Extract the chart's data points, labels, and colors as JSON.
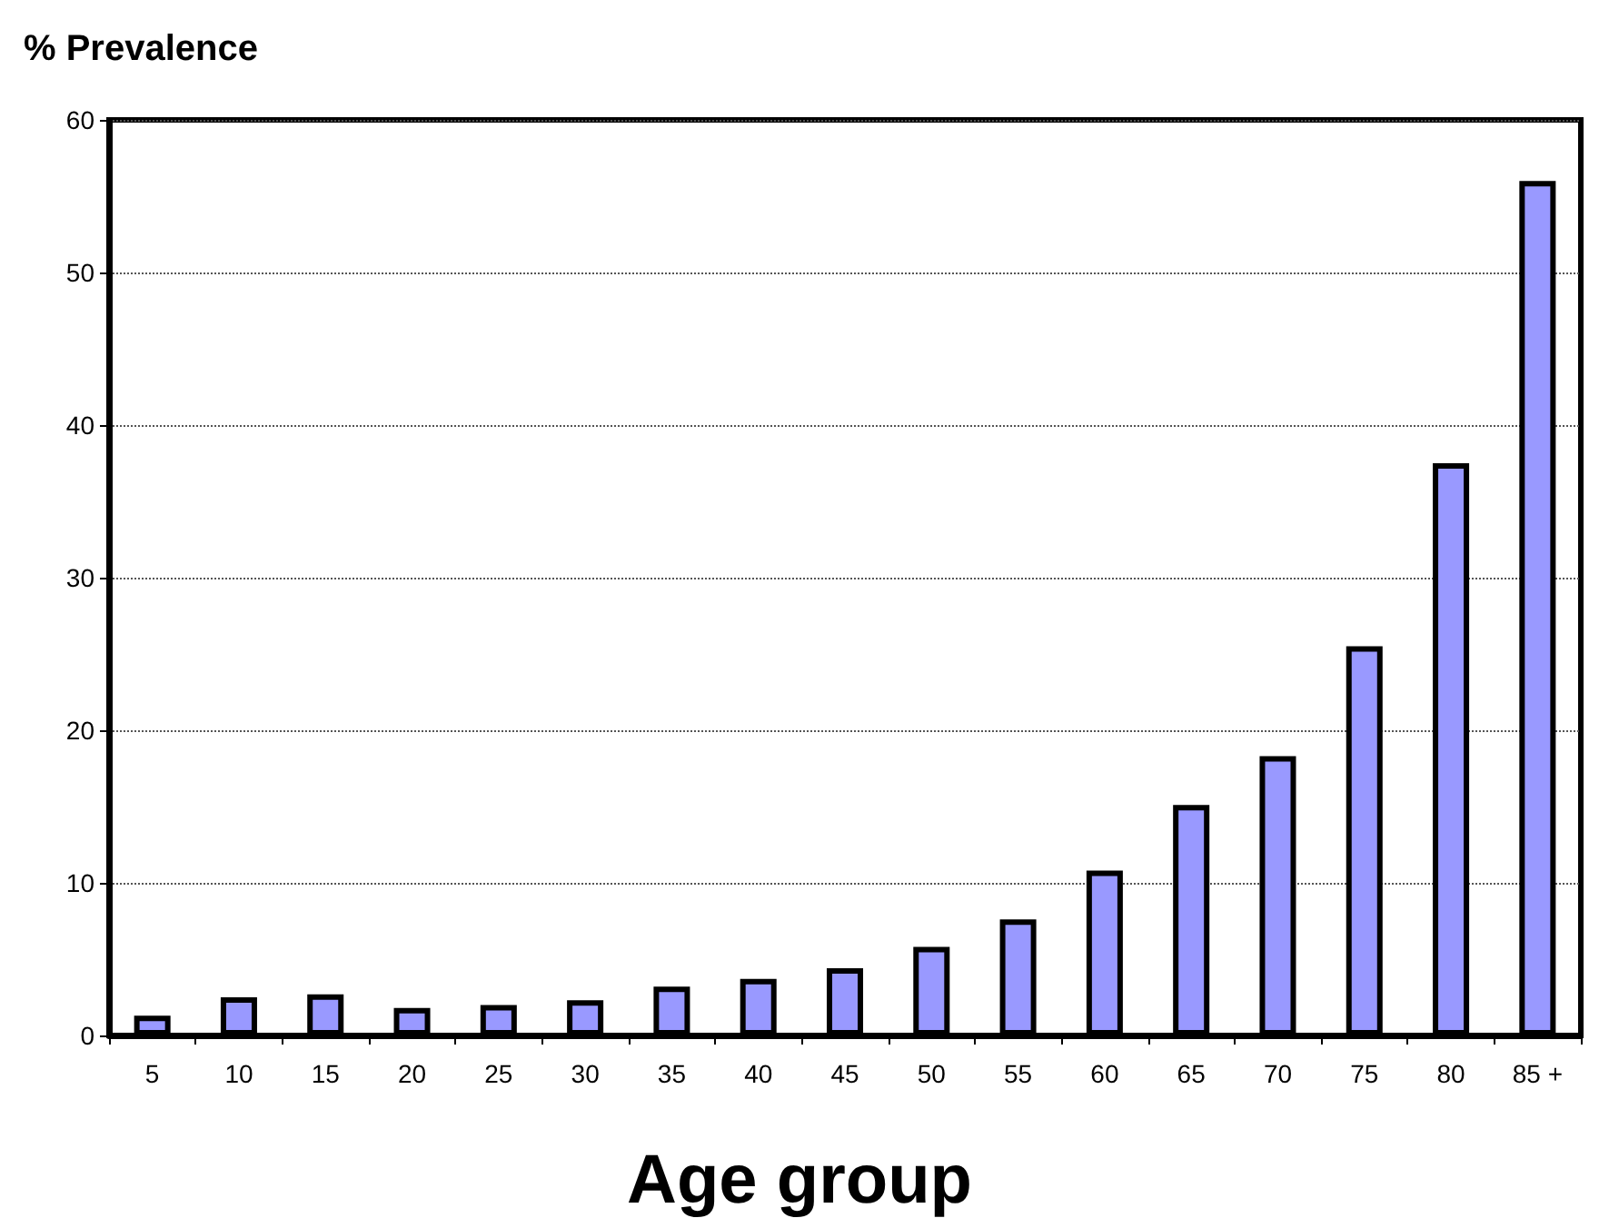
{
  "chart_data": {
    "type": "bar",
    "ylabel": "% Prevalence",
    "xlabel": "Age group",
    "categories": [
      "5",
      "10",
      "15",
      "20",
      "25",
      "30",
      "35",
      "40",
      "45",
      "50",
      "55",
      "60",
      "65",
      "70",
      "75",
      "80",
      "85 +"
    ],
    "values": [
      1.3,
      2.5,
      2.7,
      1.8,
      2.0,
      2.3,
      3.2,
      3.7,
      4.4,
      5.8,
      7.6,
      10.8,
      15.1,
      18.3,
      25.5,
      37.5,
      56.0
    ],
    "color": "#9999ff",
    "ylim": [
      0,
      60
    ],
    "yticks": [
      0,
      10,
      20,
      30,
      40,
      50,
      60
    ],
    "grid": "y"
  }
}
